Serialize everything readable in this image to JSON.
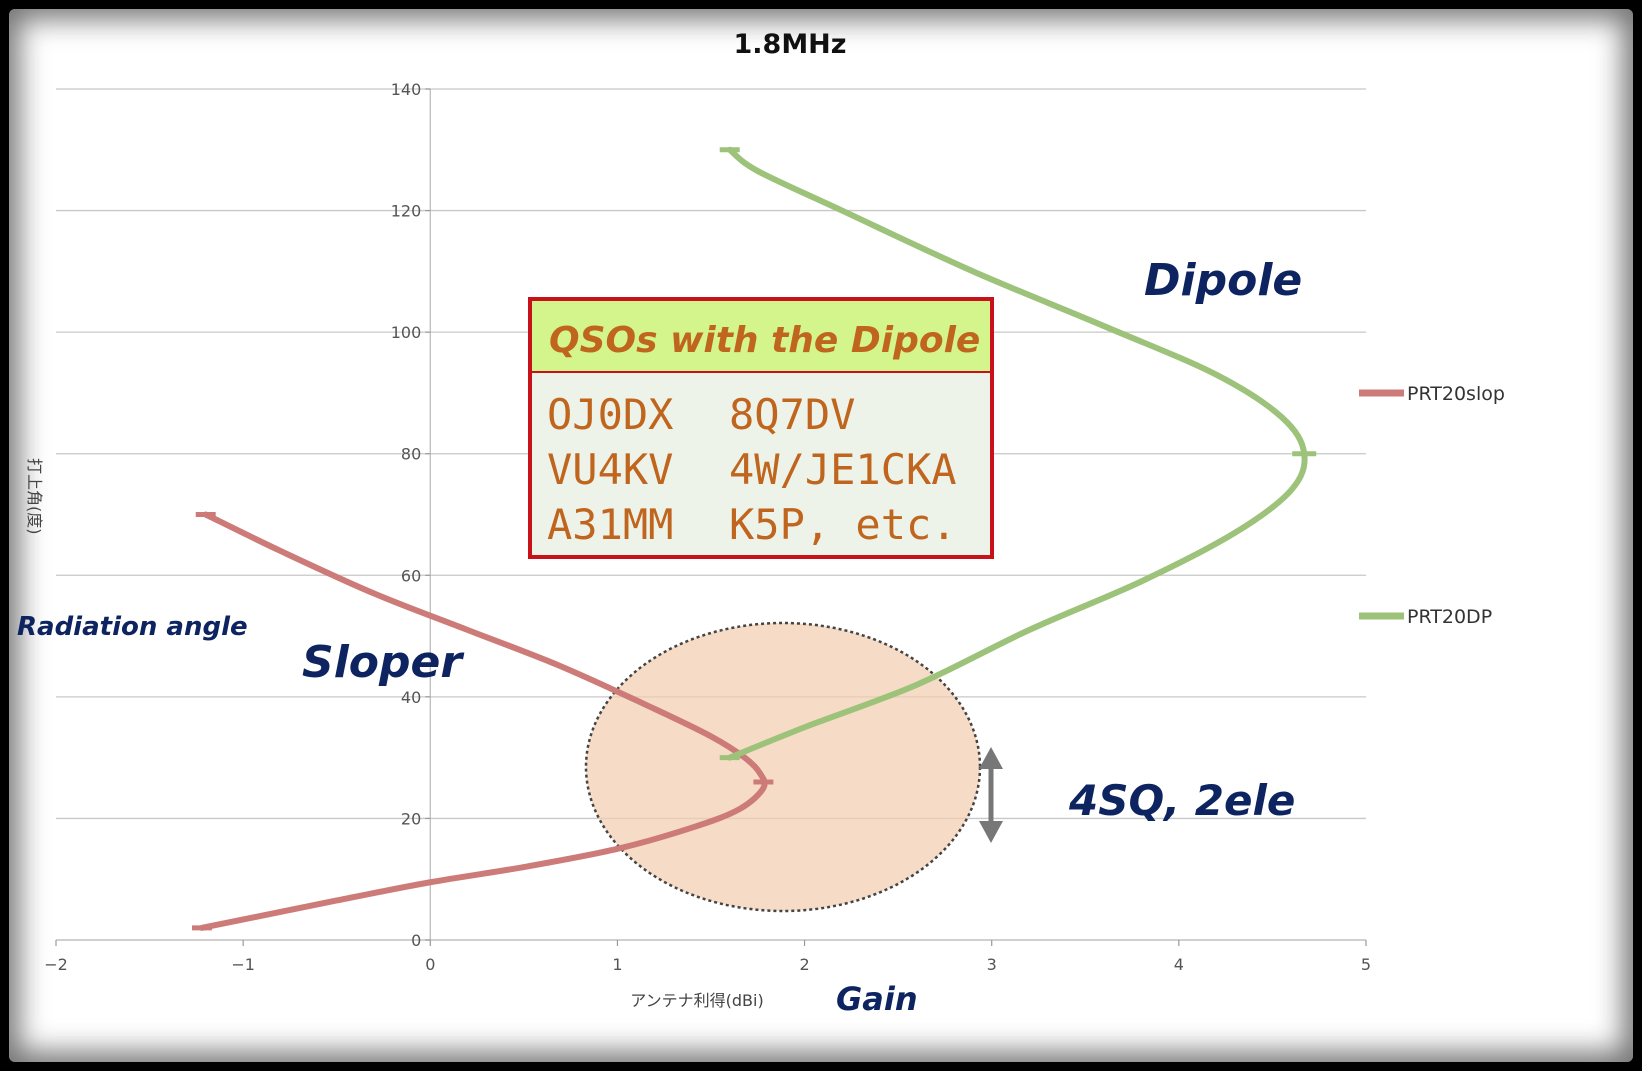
{
  "chart_data": {
    "type": "line",
    "title": "1.8MHz",
    "xlabel": "アンテナ利得(dBi)",
    "ylabel": "打上角(度)",
    "xlim": [
      -2,
      5
    ],
    "ylim": [
      0,
      140
    ],
    "x_ticks": [
      "-2",
      "-1",
      "0",
      "1",
      "2",
      "3",
      "4",
      "5"
    ],
    "y_ticks": [
      "0",
      "20",
      "40",
      "60",
      "80",
      "100",
      "120",
      "140"
    ],
    "grid": "horizontal",
    "legend_position": "right",
    "series": [
      {
        "name": "PRT20slop",
        "color": "#cd7b78",
        "points": [
          [
            -1.22,
            2
          ],
          [
            -0.9,
            4
          ],
          [
            -0.5,
            6.5
          ],
          [
            0,
            9.5
          ],
          [
            0.5,
            12
          ],
          [
            1.0,
            15
          ],
          [
            1.4,
            18.5
          ],
          [
            1.65,
            21.5
          ],
          [
            1.78,
            25
          ],
          [
            1.76,
            27.5
          ],
          [
            1.68,
            30
          ],
          [
            1.5,
            33.5
          ],
          [
            1.2,
            38
          ],
          [
            0.7,
            45
          ],
          [
            0.2,
            51
          ],
          [
            -0.3,
            57
          ],
          [
            -0.8,
            64
          ],
          [
            -1.2,
            70
          ]
        ]
      },
      {
        "name": "PRT20DP",
        "color": "#9dc27a",
        "points": [
          [
            1.6,
            30
          ],
          [
            2.0,
            35
          ],
          [
            2.6,
            42
          ],
          [
            3.2,
            51
          ],
          [
            3.8,
            59
          ],
          [
            4.3,
            67
          ],
          [
            4.6,
            74
          ],
          [
            4.67,
            80
          ],
          [
            4.55,
            86
          ],
          [
            4.2,
            93
          ],
          [
            3.6,
            101
          ],
          [
            2.9,
            110
          ],
          [
            2.2,
            120
          ],
          [
            1.75,
            126.5
          ],
          [
            1.6,
            130
          ]
        ]
      }
    ]
  },
  "annotations": {
    "dipole": "Dipole",
    "sloper": "Sloper",
    "radiation_angle": "Radiation angle",
    "gain": "Gain",
    "four_sq": "4SQ, 2ele"
  },
  "qso_box": {
    "title": "QSOs with the Dipole",
    "rows": [
      [
        "OJ0DX",
        "8Q7DV"
      ],
      [
        "VU4KV",
        "4W/JE1CKA"
      ],
      [
        "A31MM",
        "K5P, etc."
      ]
    ]
  }
}
